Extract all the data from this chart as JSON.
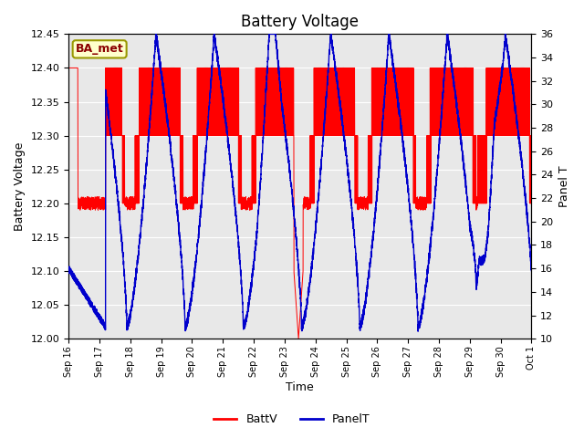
{
  "title": "Battery Voltage",
  "xlabel": "Time",
  "ylabel_left": "Battery Voltage",
  "ylabel_right": "Panel T",
  "ylim_left": [
    12.0,
    12.45
  ],
  "ylim_right": [
    10,
    36
  ],
  "yticks_left": [
    12.0,
    12.05,
    12.1,
    12.15,
    12.2,
    12.25,
    12.3,
    12.35,
    12.4,
    12.45
  ],
  "yticks_right": [
    10,
    12,
    14,
    16,
    18,
    20,
    22,
    24,
    26,
    28,
    30,
    32,
    34,
    36
  ],
  "annotation_text": "BA_met",
  "legend_labels": [
    "BattV",
    "PanelT"
  ],
  "plot_bg_color": "#e8e8e8",
  "grid_color": "white",
  "red_color": "#ff0000",
  "blue_color": "#0000cc",
  "x_tick_labels": [
    "Sep 16",
    "Sep 17",
    "Sep 18",
    "Sep 19",
    "Sep 20",
    "Sep 21",
    "Sep 22",
    "Sep 23",
    "Sep 24",
    "Sep 25",
    "Sep 26",
    "Sep 27",
    "Sep 28",
    "Sep 29",
    "Sep 30",
    "Oct 1"
  ],
  "n_days": 15,
  "panel_t_cycles_per_day": 0.53,
  "panel_t_min": 11,
  "panel_t_max": 36,
  "batt_high": 12.4,
  "batt_mid": 12.3,
  "batt_low": 12.2,
  "batt_very_low": 12.0,
  "batt_pulse_freq": 3.5
}
